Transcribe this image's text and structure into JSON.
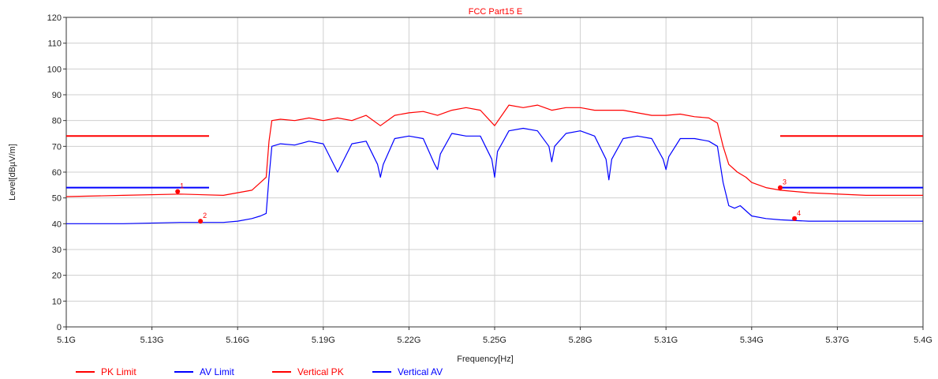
{
  "chart_data": {
    "type": "line",
    "title": "FCC Part15 E",
    "xlabel": "Frequency[Hz]",
    "ylabel": "Level[dBµV/m]",
    "xlim": [
      5.1,
      5.4
    ],
    "ylim": [
      0,
      120
    ],
    "x_ticks": [
      5.1,
      5.13,
      5.16,
      5.19,
      5.22,
      5.25,
      5.28,
      5.31,
      5.34,
      5.37,
      5.4
    ],
    "x_tick_labels": [
      "5.1G",
      "5.13G",
      "5.16G",
      "5.19G",
      "5.22G",
      "5.25G",
      "5.28G",
      "5.31G",
      "5.34G",
      "5.37G",
      "5.4G"
    ],
    "y_ticks": [
      0,
      10,
      20,
      30,
      40,
      50,
      60,
      70,
      80,
      90,
      100,
      110,
      120
    ],
    "y_tick_labels": [
      "0",
      "10",
      "20",
      "30",
      "40",
      "50",
      "60",
      "70",
      "80",
      "90",
      "100",
      "110",
      "120"
    ],
    "grid": true,
    "legend_position": "bottom-left",
    "series": [
      {
        "name": "PK Limit",
        "color": "#ff0000",
        "segments": [
          {
            "x": [
              5.1,
              5.15
            ],
            "y": [
              74,
              74
            ]
          },
          {
            "x": [
              5.35,
              5.4
            ],
            "y": [
              74,
              74
            ]
          }
        ]
      },
      {
        "name": "AV Limit",
        "color": "#0000ff",
        "segments": [
          {
            "x": [
              5.1,
              5.15
            ],
            "y": [
              54,
              54
            ]
          },
          {
            "x": [
              5.35,
              5.4
            ],
            "y": [
              54,
              54
            ]
          }
        ]
      },
      {
        "name": "Vertical PK",
        "color": "#ff0000",
        "x": [
          5.1,
          5.12,
          5.14,
          5.155,
          5.16,
          5.165,
          5.168,
          5.17,
          5.171,
          5.172,
          5.175,
          5.18,
          5.185,
          5.19,
          5.195,
          5.2,
          5.205,
          5.21,
          5.215,
          5.22,
          5.225,
          5.23,
          5.235,
          5.24,
          5.245,
          5.25,
          5.255,
          5.26,
          5.265,
          5.27,
          5.275,
          5.28,
          5.285,
          5.29,
          5.295,
          5.3,
          5.305,
          5.31,
          5.315,
          5.32,
          5.325,
          5.328,
          5.33,
          5.332,
          5.335,
          5.338,
          5.34,
          5.345,
          5.35,
          5.36,
          5.38,
          5.4
        ],
        "y": [
          50.5,
          51,
          51.5,
          51,
          52,
          53,
          56,
          58,
          72,
          80,
          80.5,
          80,
          81,
          80,
          81,
          80,
          82,
          78,
          82,
          83,
          83.5,
          82,
          84,
          85,
          84,
          78,
          86,
          85,
          86,
          84,
          85,
          85,
          84,
          84,
          84,
          83,
          82,
          82,
          82.5,
          81.5,
          81,
          79,
          70,
          63,
          60,
          58,
          56,
          54,
          53,
          52,
          51,
          51
        ]
      },
      {
        "name": "Vertical AV",
        "color": "#0000ff",
        "x": [
          5.1,
          5.12,
          5.14,
          5.155,
          5.16,
          5.165,
          5.168,
          5.17,
          5.171,
          5.172,
          5.175,
          5.18,
          5.185,
          5.19,
          5.195,
          5.2,
          5.205,
          5.209,
          5.21,
          5.211,
          5.215,
          5.22,
          5.225,
          5.229,
          5.23,
          5.231,
          5.235,
          5.24,
          5.245,
          5.249,
          5.25,
          5.251,
          5.255,
          5.26,
          5.265,
          5.269,
          5.27,
          5.271,
          5.275,
          5.28,
          5.285,
          5.289,
          5.29,
          5.291,
          5.295,
          5.3,
          5.305,
          5.309,
          5.31,
          5.311,
          5.315,
          5.32,
          5.325,
          5.328,
          5.33,
          5.332,
          5.334,
          5.336,
          5.338,
          5.34,
          5.345,
          5.35,
          5.36,
          5.38,
          5.4
        ],
        "y": [
          40,
          40,
          40.5,
          40.5,
          41,
          42,
          43,
          44,
          58,
          70,
          71,
          70.5,
          72,
          71,
          60,
          71,
          72,
          63,
          58,
          63,
          73,
          74,
          73,
          63,
          61,
          67,
          75,
          74,
          74,
          65,
          58,
          68,
          76,
          77,
          76,
          70,
          64,
          70,
          75,
          76,
          74,
          65,
          57,
          65,
          73,
          74,
          73,
          65,
          61,
          66,
          73,
          73,
          72,
          70,
          56,
          47,
          46,
          47,
          45,
          43,
          42,
          41.5,
          41,
          41,
          41
        ]
      }
    ],
    "markers": [
      {
        "label": "1",
        "x": 5.139,
        "y": 52.5,
        "color": "#ff0000"
      },
      {
        "label": "2",
        "x": 5.147,
        "y": 41,
        "color": "#ff0000"
      },
      {
        "label": "3",
        "x": 5.35,
        "y": 54,
        "color": "#ff0000"
      },
      {
        "label": "4",
        "x": 5.355,
        "y": 42,
        "color": "#ff0000"
      }
    ]
  }
}
